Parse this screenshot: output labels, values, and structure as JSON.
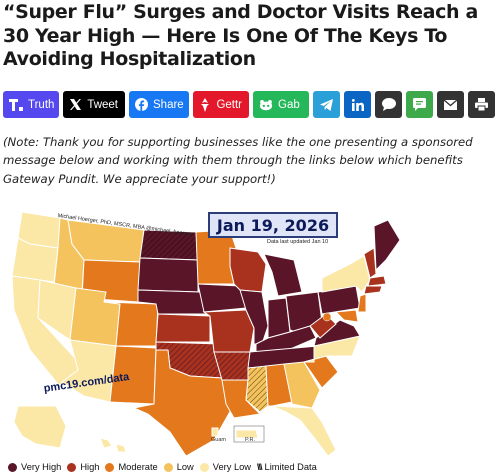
{
  "article": {
    "headline_lines": [
      "“Super Flu” Surges and Doctor Visits Reach a",
      "30 Year High — Here Is One Of The Keys To",
      "Avoiding Hospitalization"
    ],
    "note": "(Note: Thank you for supporting businesses like the one presenting a sponsored message below and working with them through the links below which benefits Gateway Pundit. We appreciate your support!)"
  },
  "share_bar": {
    "truth": {
      "label": "Truth",
      "icon": "truth-social-icon",
      "color": "#5448ee"
    },
    "tweet": {
      "label": "Tweet",
      "icon": "x-icon",
      "color": "#000000"
    },
    "share": {
      "label": "Share",
      "icon": "facebook-icon",
      "color": "#1877f2"
    },
    "gettr": {
      "label": "Gettr",
      "icon": "gettr-icon",
      "color": "#e3192b"
    },
    "gab": {
      "label": "Gab",
      "icon": "gab-icon",
      "color": "#25b85a"
    },
    "telegram": {
      "icon": "telegram-icon",
      "color": "#2a9fd8"
    },
    "linkedin": {
      "icon": "linkedin-icon",
      "color": "#0a66c2"
    },
    "comment": {
      "icon": "comment-icon",
      "color": "#333333"
    },
    "sms": {
      "icon": "sms-icon",
      "color": "#3ea94a"
    },
    "email": {
      "icon": "email-icon",
      "color": "#333333"
    },
    "print": {
      "icon": "print-icon",
      "color": "#333333"
    }
  },
  "map": {
    "date": "Jan 19, 2026",
    "updated": "Data last updated Jan 10",
    "author": "Michael Hoerger, PhD, MSCR, MBA  @michael_hoerger",
    "source": "pmc19.com/data",
    "guam": "Guam",
    "pr": "P.R.",
    "colors": {
      "very_high": "#5a1628",
      "high": "#a8321e",
      "moderate": "#e3781c",
      "low": "#f4c35e",
      "very_low": "#fbe7a6"
    },
    "legend": [
      {
        "label": "Very High",
        "color": "#5a1628"
      },
      {
        "label": "High",
        "color": "#a8321e"
      },
      {
        "label": "Moderate",
        "color": "#e3781c"
      },
      {
        "label": "Low",
        "color": "#f4c35e"
      },
      {
        "label": "Very Low",
        "color": "#fbe7a6"
      }
    ],
    "limited_label": "Limited Data"
  }
}
